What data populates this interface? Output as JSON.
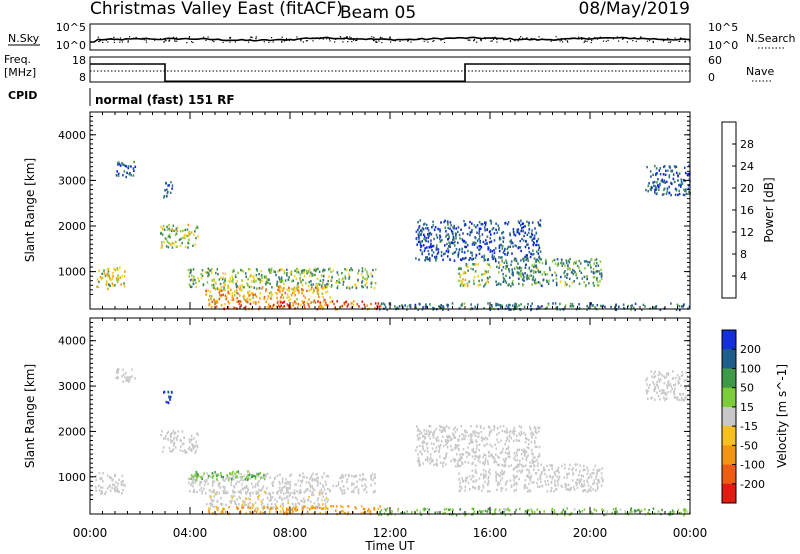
{
  "header": {
    "station": "Christmas Valley East (fitACF)",
    "beam": "Beam 05",
    "date": "08/May/2019"
  },
  "status_panel": {
    "nsky_label": "N.Sky",
    "nsearch_label": "N.Search",
    "freq_label_1": "Freq.",
    "freq_label_2": "[MHz]",
    "nave_label": "Nave",
    "cpid_label": "CPID",
    "cpid_value": "normal (fast) 151 RF",
    "noise_ticks": [
      "10^5",
      "10^0"
    ],
    "freq_ticks": [
      "18",
      "8"
    ],
    "nave_ticks": [
      "60",
      "0"
    ],
    "freq_steps": [
      {
        "t": 0.0,
        "f": 15.2
      },
      {
        "t": 3.0,
        "f": 8.3
      },
      {
        "t": 15.0,
        "f": 15.2
      },
      {
        "t": 24.0,
        "f": 15.2
      }
    ]
  },
  "chart_data": [
    {
      "type": "heatmap",
      "quantity": "Power",
      "ylabel": "Slant Range [km]",
      "xlabel": "Time UT",
      "xlim": [
        0,
        24
      ],
      "ylim": [
        180,
        4500
      ],
      "x_ticks": [
        "00:00",
        "04:00",
        "08:00",
        "12:00",
        "16:00",
        "20:00",
        "00:00"
      ],
      "y_ticks": [
        1000,
        2000,
        3000,
        4000
      ],
      "colorbar": {
        "label": "Power [dB]",
        "range": [
          0,
          32
        ],
        "ticks": [
          4,
          8,
          12,
          16,
          20,
          24,
          28
        ],
        "colors": [
          "#0a20e0",
          "#1a4aa8",
          "#2f6f86",
          "#3d8c55",
          "#8cc63f",
          "#f7ce1b",
          "#f59a10",
          "#ee5a14",
          "#dd1a12"
        ]
      },
      "regions": [
        {
          "t0": 0.2,
          "t1": 1.4,
          "r0": 650,
          "r1": 1120,
          "level": 18
        },
        {
          "t0": 1.0,
          "t1": 1.8,
          "r0": 3100,
          "r1": 3450,
          "level": 7
        },
        {
          "t0": 2.8,
          "t1": 4.3,
          "r0": 1550,
          "r1": 2050,
          "level": 17
        },
        {
          "t0": 2.9,
          "t1": 3.3,
          "r0": 2650,
          "r1": 3000,
          "level": 7
        },
        {
          "t0": 3.9,
          "t1": 11.4,
          "r0": 650,
          "r1": 1100,
          "level": 15
        },
        {
          "t0": 4.6,
          "t1": 9.6,
          "r0": 320,
          "r1": 700,
          "level": 22
        },
        {
          "t0": 4.7,
          "t1": 11.6,
          "r0": 200,
          "r1": 380,
          "level": 26
        },
        {
          "t0": 13.0,
          "t1": 18.0,
          "r0": 1250,
          "r1": 2150,
          "level": 6
        },
        {
          "t0": 14.7,
          "t1": 16.0,
          "r0": 700,
          "r1": 1200,
          "level": 16
        },
        {
          "t0": 16.2,
          "t1": 20.5,
          "r0": 700,
          "r1": 1300,
          "level": 12
        },
        {
          "t0": 11.5,
          "t1": 24.0,
          "r0": 180,
          "r1": 330,
          "level": 9
        },
        {
          "t0": 22.2,
          "t1": 24.0,
          "r0": 2700,
          "r1": 3350,
          "level": 6
        }
      ]
    },
    {
      "type": "heatmap",
      "quantity": "Velocity",
      "ylabel": "Slant Range [km]",
      "xlabel": "Time UT",
      "xlim": [
        0,
        24
      ],
      "ylim": [
        180,
        4500
      ],
      "x_ticks": [
        "00:00",
        "04:00",
        "08:00",
        "12:00",
        "16:00",
        "20:00",
        "00:00"
      ],
      "y_ticks": [
        1000,
        2000,
        3000,
        4000
      ],
      "colorbar": {
        "label": "Velocity [m s^-1]",
        "tick_labels": [
          "200",
          "100",
          "50",
          "15",
          "-15",
          "-50",
          "-100",
          "-200"
        ],
        "colors": [
          "#1530d8",
          "#1f5e8a",
          "#3f9a48",
          "#7dcc3a",
          "#c8c8c8",
          "#f5c020",
          "#f39514",
          "#ee5d14",
          "#e11a12"
        ]
      },
      "regions": [
        {
          "t0": 0.2,
          "t1": 1.4,
          "r0": 650,
          "r1": 1120,
          "v": 0
        },
        {
          "t0": 1.0,
          "t1": 1.8,
          "r0": 3100,
          "r1": 3450,
          "v": 0
        },
        {
          "t0": 2.8,
          "t1": 4.3,
          "r0": 1550,
          "r1": 2050,
          "v": 0
        },
        {
          "t0": 2.9,
          "t1": 3.3,
          "r0": 2650,
          "r1": 3000,
          "v": 180
        },
        {
          "t0": 3.9,
          "t1": 11.4,
          "r0": 650,
          "r1": 1100,
          "v": 0
        },
        {
          "t0": 4.0,
          "t1": 7.0,
          "r0": 950,
          "r1": 1150,
          "v": 30
        },
        {
          "t0": 4.6,
          "t1": 9.6,
          "r0": 320,
          "r1": 700,
          "v": -5
        },
        {
          "t0": 4.7,
          "t1": 11.6,
          "r0": 200,
          "r1": 380,
          "v": -40
        },
        {
          "t0": 13.0,
          "t1": 18.0,
          "r0": 1250,
          "r1": 2150,
          "v": 0
        },
        {
          "t0": 14.7,
          "t1": 16.0,
          "r0": 700,
          "r1": 1200,
          "v": 0
        },
        {
          "t0": 16.2,
          "t1": 20.5,
          "r0": 700,
          "r1": 1300,
          "v": 0
        },
        {
          "t0": 11.5,
          "t1": 24.0,
          "r0": 180,
          "r1": 330,
          "v": 25
        },
        {
          "t0": 22.2,
          "t1": 24.0,
          "r0": 2700,
          "r1": 3350,
          "v": 0
        }
      ]
    }
  ]
}
